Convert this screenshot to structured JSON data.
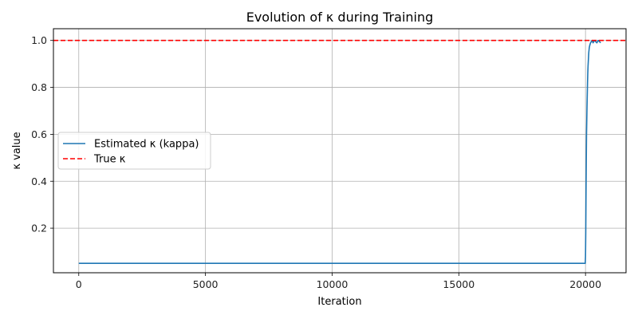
{
  "chart_data": {
    "type": "line",
    "title": "Evolution of κ during Training",
    "xlabel": "Iteration",
    "ylabel": "κ value",
    "xlim": [
      -1000,
      21600
    ],
    "ylim": [
      0.01,
      1.05
    ],
    "xticks": [
      0,
      5000,
      10000,
      15000,
      20000
    ],
    "yticks": [
      0.2,
      0.4,
      0.6,
      0.8,
      1.0
    ],
    "xtick_labels": [
      "0",
      "5000",
      "10000",
      "15000",
      "20000"
    ],
    "ytick_labels": [
      "0.2",
      "0.4",
      "0.6",
      "0.8",
      "1.0"
    ],
    "grid": true,
    "legend_position": "center-left",
    "series": [
      {
        "name": "Estimated κ (kappa)",
        "style": "solid",
        "color": "#1f77b4",
        "x": [
          0,
          19990,
          20000,
          20010,
          20020,
          20030,
          20040,
          20050,
          20060,
          20070,
          20080,
          20090,
          20100,
          20110,
          20120,
          20130,
          20150,
          20170,
          20200,
          20230,
          20260,
          20300,
          20350,
          20400,
          20450,
          20500,
          20550,
          20600
        ],
        "y": [
          0.05,
          0.05,
          0.08,
          0.18,
          0.34,
          0.48,
          0.6,
          0.66,
          0.72,
          0.77,
          0.82,
          0.86,
          0.89,
          0.91,
          0.93,
          0.95,
          0.97,
          0.98,
          0.99,
          0.995,
          1.0,
          0.99,
          1.0,
          0.995,
          0.99,
          1.0,
          0.995,
          0.99
        ]
      },
      {
        "name": "True κ",
        "style": "dashed",
        "color": "#ff0000",
        "x": [
          -1000,
          21600
        ],
        "y": [
          1.0,
          1.0
        ]
      }
    ]
  }
}
